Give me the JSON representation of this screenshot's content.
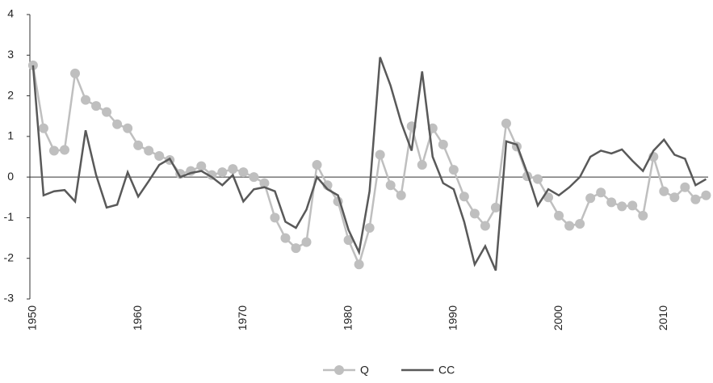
{
  "chart_data": {
    "type": "line",
    "x": [
      1950,
      1951,
      1952,
      1953,
      1954,
      1955,
      1956,
      1957,
      1958,
      1959,
      1960,
      1961,
      1962,
      1963,
      1964,
      1965,
      1966,
      1967,
      1968,
      1969,
      1970,
      1971,
      1972,
      1973,
      1974,
      1975,
      1976,
      1977,
      1978,
      1979,
      1980,
      1981,
      1982,
      1983,
      1984,
      1985,
      1986,
      1987,
      1988,
      1989,
      1990,
      1991,
      1992,
      1993,
      1994,
      1995,
      1996,
      1997,
      1998,
      1999,
      2000,
      2001,
      2002,
      2003,
      2004,
      2005,
      2006,
      2007,
      2008,
      2009,
      2010,
      2011,
      2012,
      2013,
      2014
    ],
    "series": [
      {
        "name": "Q",
        "color": "#bfbfbf",
        "marker": true,
        "values": [
          2.75,
          1.2,
          0.65,
          0.67,
          2.55,
          1.9,
          1.75,
          1.6,
          1.3,
          1.2,
          0.78,
          0.65,
          0.52,
          0.42,
          0.08,
          0.15,
          0.27,
          0.05,
          0.12,
          0.2,
          0.12,
          0.0,
          -0.15,
          -1.0,
          -1.5,
          -1.75,
          -1.6,
          0.3,
          -0.2,
          -0.6,
          -1.55,
          -2.15,
          -1.25,
          0.55,
          -0.2,
          -0.45,
          1.25,
          0.3,
          1.2,
          0.8,
          0.18,
          -0.48,
          -0.9,
          -1.2,
          -0.75,
          1.32,
          0.75,
          0.02,
          -0.05,
          -0.5,
          -0.95,
          -1.2,
          -1.15,
          -0.52,
          -0.38,
          -0.62,
          -0.72,
          -0.7,
          -0.95,
          0.5,
          -0.35,
          -0.5,
          -0.25,
          -0.55,
          -0.45
        ]
      },
      {
        "name": "CC",
        "color": "#595959",
        "marker": false,
        "values": [
          2.75,
          -0.45,
          -0.35,
          -0.32,
          -0.6,
          1.15,
          0.05,
          -0.75,
          -0.68,
          0.12,
          -0.48,
          -0.1,
          0.3,
          0.45,
          0.0,
          0.1,
          0.15,
          0.0,
          -0.2,
          0.05,
          -0.6,
          -0.3,
          -0.25,
          -0.35,
          -1.1,
          -1.25,
          -0.8,
          0.0,
          -0.3,
          -0.45,
          -1.3,
          -1.85,
          -0.35,
          2.95,
          2.25,
          1.35,
          0.65,
          2.6,
          0.5,
          -0.15,
          -0.3,
          -1.1,
          -2.15,
          -1.7,
          -2.3,
          0.88,
          0.8,
          0.1,
          -0.7,
          -0.3,
          -0.45,
          -0.25,
          0.0,
          0.5,
          0.65,
          0.58,
          0.68,
          0.4,
          0.15,
          0.65,
          0.92,
          0.55,
          0.45,
          -0.2,
          -0.05
        ]
      }
    ],
    "xlim": [
      1949.7,
      2014.2
    ],
    "xticks": [
      1950,
      1960,
      1970,
      1980,
      1990,
      2000,
      2010
    ],
    "ylim": [
      -3,
      4
    ],
    "yticks": [
      -3,
      -2,
      -1,
      0,
      1,
      2,
      3,
      4
    ],
    "grid": false,
    "legend": "bottom"
  }
}
